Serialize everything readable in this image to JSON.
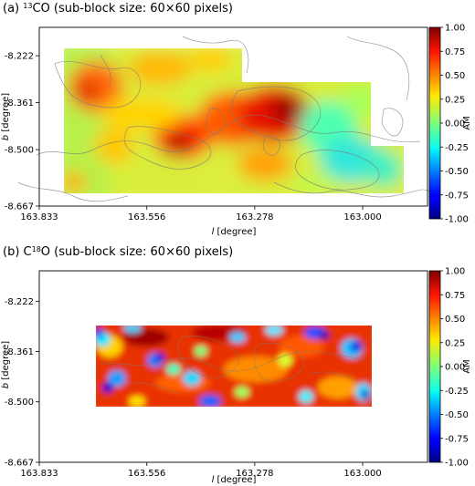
{
  "chart_data": [
    {
      "type": "heatmap",
      "panel": "(a)",
      "title_prefix": "(a) ",
      "title_super": "13",
      "title_main": "CO (sub-block size: 60×60 pixels)",
      "xlabel_italic": "l",
      "xlabel_rest": " [degree]",
      "ylabel_italic": "b",
      "ylabel_rest": " [degree]",
      "xlim": [
        163.833,
        162.833
      ],
      "ylim": [
        -8.667,
        -8.138
      ],
      "x_ticks": [
        163.833,
        163.556,
        163.278,
        163.0
      ],
      "x_tick_labels": [
        "163.833",
        "163.556",
        "163.278",
        "163.000"
      ],
      "y_ticks": [
        -8.222,
        -8.361,
        -8.5,
        -8.667
      ],
      "y_tick_labels": [
        "-8.222",
        "-8.361",
        "-8.500",
        "-8.667"
      ],
      "colorbar_label": "AM",
      "colorbar_ticks": [
        1.0,
        0.75,
        0.5,
        0.25,
        0.0,
        -0.25,
        -0.5,
        -0.75,
        -1.0
      ],
      "colorbar_tick_labels": [
        "1.00",
        "0.75",
        "0.50",
        "0.25",
        "0.00",
        "-0.25",
        "-0.50",
        "-0.75",
        "-1.00"
      ],
      "vmin": -1.0,
      "vmax": 1.0,
      "colormap": "jet",
      "map_extent": {
        "l_left": 163.78,
        "l_right": 162.92,
        "b_top": -8.222,
        "b_bottom": -8.638
      }
    },
    {
      "type": "heatmap",
      "panel": "(b)",
      "title_prefix": "(b) C",
      "title_super": "18",
      "title_main": "O (sub-block size: 60×60 pixels)",
      "xlabel_italic": "l",
      "xlabel_rest": " [degree]",
      "ylabel_italic": "b",
      "ylabel_rest": " [degree]",
      "xlim": [
        163.833,
        162.833
      ],
      "ylim": [
        -8.667,
        -8.138
      ],
      "x_ticks": [
        163.833,
        163.556,
        163.278,
        163.0
      ],
      "x_tick_labels": [
        "163.833",
        "163.556",
        "163.278",
        "163.000"
      ],
      "y_ticks": [
        -8.222,
        -8.361,
        -8.5,
        -8.667
      ],
      "y_tick_labels": [
        "-8.222",
        "-8.361",
        "-8.500",
        "-8.667"
      ],
      "colorbar_label": "AM",
      "colorbar_ticks": [
        1.0,
        0.75,
        0.5,
        0.25,
        0.0,
        -0.25,
        -0.5,
        -0.75,
        -1.0
      ],
      "colorbar_tick_labels": [
        "1.00",
        "0.75",
        "0.50",
        "0.25",
        "0.00",
        "-0.25",
        "-0.50",
        "-0.75",
        "-1.00"
      ],
      "vmin": -1.0,
      "vmax": 1.0,
      "colormap": "jet",
      "map_extent": {
        "l_left": 163.67,
        "l_right": 162.99,
        "b_top": -8.306,
        "b_bottom": -8.528
      }
    }
  ]
}
